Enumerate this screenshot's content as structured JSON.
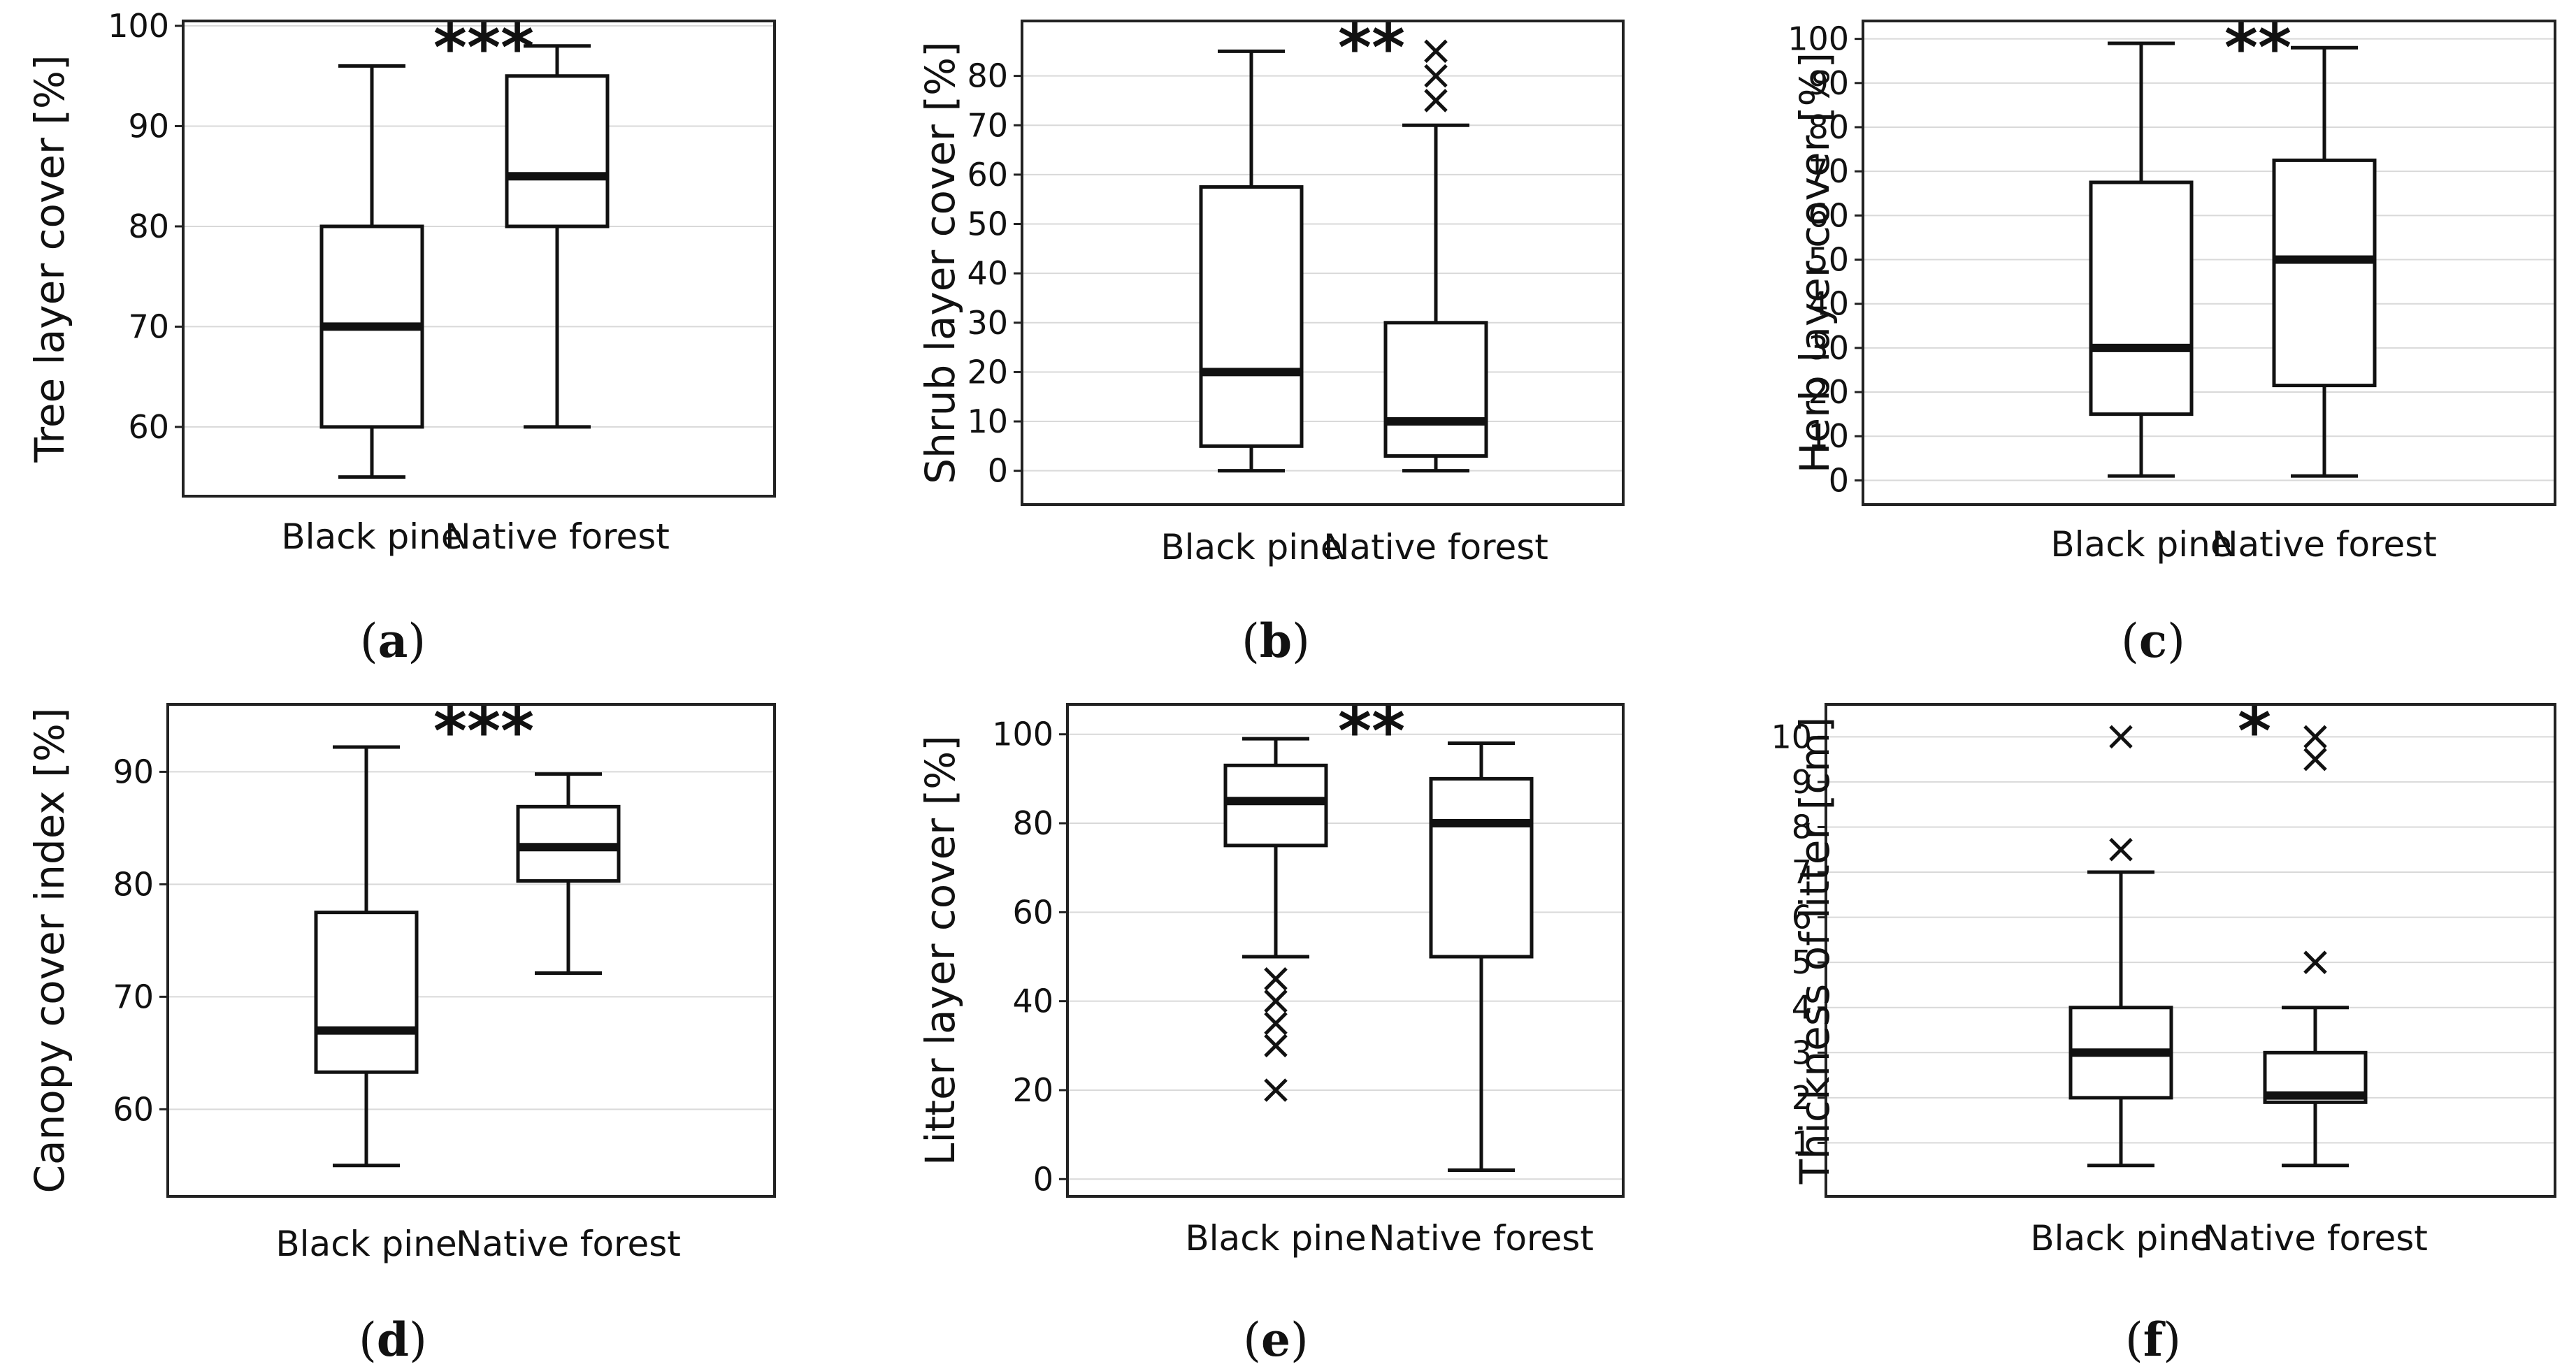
{
  "chart_data": [
    {
      "type": "box",
      "panel": "a",
      "ylabel": "Tree layer cover [%]",
      "categories": [
        "Black pine",
        "Native forest"
      ],
      "ylim": [
        54,
        100
      ],
      "yticks": [
        60,
        70,
        80,
        90,
        100
      ],
      "significance": "***",
      "boxes": [
        {
          "category": "Black pine",
          "min": 55,
          "q1": 60,
          "median": 70,
          "q3": 80,
          "max": 96,
          "outliers": []
        },
        {
          "category": "Native forest",
          "min": 60,
          "q1": 80,
          "median": 85,
          "q3": 95,
          "max": 98,
          "outliers": []
        }
      ]
    },
    {
      "type": "box",
      "panel": "b",
      "ylabel": "Shrub layer cover [%]",
      "categories": [
        "Black pine",
        "Native forest"
      ],
      "ylim": [
        -5,
        90
      ],
      "yticks": [
        0,
        10,
        20,
        30,
        40,
        50,
        60,
        70,
        80
      ],
      "significance": "**",
      "boxes": [
        {
          "category": "Black pine",
          "min": 0,
          "q1": 5,
          "median": 20,
          "q3": 57.5,
          "max": 85,
          "outliers": []
        },
        {
          "category": "Native forest",
          "min": 0,
          "q1": 3,
          "median": 10,
          "q3": 30,
          "max": 70,
          "outliers": [
            75,
            80,
            85
          ]
        }
      ]
    },
    {
      "type": "box",
      "panel": "c",
      "ylabel": "Herb layer cover [%]",
      "categories": [
        "Black pine",
        "Native forest"
      ],
      "ylim": [
        -5,
        102
      ],
      "yticks": [
        0,
        10,
        20,
        30,
        40,
        50,
        60,
        70,
        80,
        90,
        100
      ],
      "significance": "**",
      "boxes": [
        {
          "category": "Black pine",
          "min": 1,
          "q1": 15,
          "median": 30,
          "q3": 67.5,
          "max": 99,
          "outliers": []
        },
        {
          "category": "Native forest",
          "min": 1,
          "q1": 21.5,
          "median": 50,
          "q3": 72.5,
          "max": 98,
          "outliers": []
        }
      ]
    },
    {
      "type": "box",
      "panel": "d",
      "ylabel": "Canopy cover index [%]",
      "categories": [
        "Black pine",
        "Native forest"
      ],
      "ylim": [
        53,
        94.5
      ],
      "yticks": [
        60,
        70,
        80,
        90
      ],
      "significance": "***",
      "boxes": [
        {
          "category": "Black pine",
          "min": 55,
          "q1": 63.3,
          "median": 67,
          "q3": 77.5,
          "max": 92.2,
          "outliers": []
        },
        {
          "category": "Native forest",
          "min": 72.1,
          "q1": 80.3,
          "median": 83.3,
          "q3": 86.9,
          "max": 89.8,
          "outliers": []
        }
      ]
    },
    {
      "type": "box",
      "panel": "e",
      "ylabel": "Litter layer cover [%]",
      "categories": [
        "Black pine",
        "Native forest"
      ],
      "ylim": [
        -2,
        102
      ],
      "yticks": [
        0,
        20,
        40,
        60,
        80,
        100
      ],
      "significance": "**",
      "boxes": [
        {
          "category": "Black pine",
          "min": 50,
          "q1": 75,
          "median": 85,
          "q3": 93,
          "max": 99,
          "outliers": [
            20,
            30,
            35,
            40,
            45
          ]
        },
        {
          "category": "Native forest",
          "min": 2,
          "q1": 50,
          "median": 80,
          "q3": 90,
          "max": 98,
          "outliers": []
        }
      ]
    },
    {
      "type": "box",
      "panel": "f",
      "ylabel": "Thickness of litter [cm]",
      "categories": [
        "Black pine",
        "Native forest"
      ],
      "ylim": [
        0,
        10.3
      ],
      "yticks": [
        1,
        2,
        3,
        4,
        5,
        6,
        7,
        8,
        9,
        10
      ],
      "significance": "*",
      "boxes": [
        {
          "category": "Black pine",
          "min": 0.5,
          "q1": 2,
          "median": 3,
          "q3": 4,
          "max": 7,
          "outliers": [
            7.5,
            10
          ]
        },
        {
          "category": "Native forest",
          "min": 0.5,
          "q1": 1.9,
          "median": 2.05,
          "q3": 3,
          "max": 4,
          "outliers": [
            5,
            9.5,
            10
          ]
        }
      ]
    }
  ],
  "panel_labels": [
    "a",
    "b",
    "c",
    "d",
    "e",
    "f"
  ]
}
